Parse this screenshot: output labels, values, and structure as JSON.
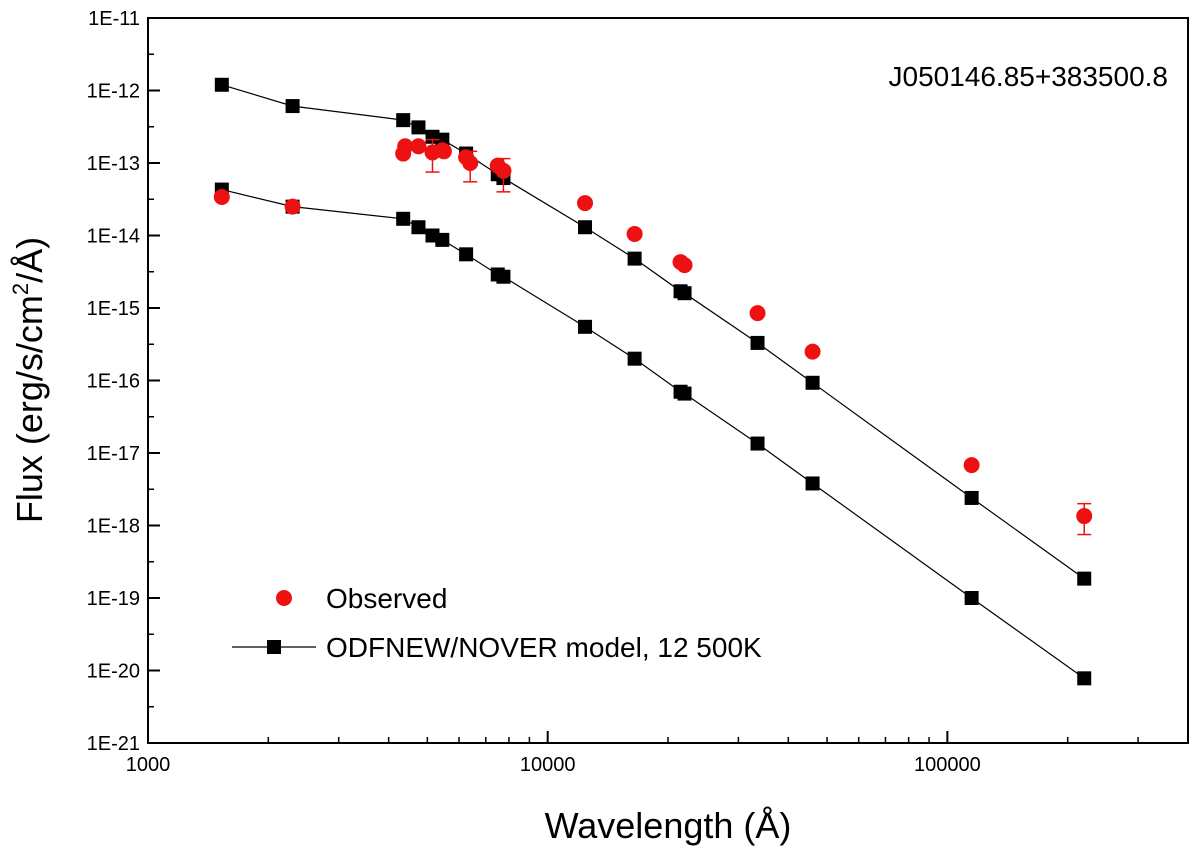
{
  "chart_data": {
    "type": "scatter",
    "xscale": "log",
    "yscale": "log",
    "xlabel": "Wavelength (Å)",
    "ylabel_parts": [
      "Flux (erg/s/cm",
      "2",
      "/Å)"
    ],
    "annotation": "J050146.85+383500.8",
    "xlim": [
      1000,
      400000
    ],
    "ylim": [
      1e-21,
      1e-11
    ],
    "x_ticks": [
      {
        "value": 1000,
        "label": "1000"
      },
      {
        "value": 10000,
        "label": "10000"
      },
      {
        "value": 100000,
        "label": "100000"
      }
    ],
    "y_ticks": [
      {
        "value": 1e-11,
        "label": "1E-11"
      },
      {
        "value": 1e-12,
        "label": "1E-12"
      },
      {
        "value": 1e-13,
        "label": "1E-13"
      },
      {
        "value": 1e-14,
        "label": "1E-14"
      },
      {
        "value": 1e-15,
        "label": "1E-15"
      },
      {
        "value": 1e-16,
        "label": "1E-16"
      },
      {
        "value": 1e-17,
        "label": "1E-17"
      },
      {
        "value": 1e-18,
        "label": "1E-18"
      },
      {
        "value": 1e-19,
        "label": "1E-19"
      },
      {
        "value": 1e-20,
        "label": "1E-20"
      },
      {
        "value": 1e-21,
        "label": "1E-21"
      }
    ],
    "legend": {
      "position": "bottom-left",
      "entries": [
        {
          "label": "Observed",
          "marker": "circle",
          "color": "#ee1111"
        },
        {
          "label": "ODFNEW/NOVER model, 12 500K",
          "marker": "square-line",
          "color": "#000000"
        }
      ]
    },
    "series": [
      {
        "name": "Observed",
        "kind": "points-with-errors",
        "color": "#ee1111",
        "points": [
          {
            "x": 1530,
            "y": 3.4e-14
          },
          {
            "x": 2300,
            "y": 2.5e-14
          },
          {
            "x": 4350,
            "y": 1.35e-13
          },
          {
            "x": 4400,
            "y": 1.7e-13
          },
          {
            "x": 4750,
            "y": 1.7e-13
          },
          {
            "x": 5150,
            "y": 1.4e-13,
            "ylo": 7.5e-14,
            "yhi": 2.1e-13
          },
          {
            "x": 5450,
            "y": 1.5e-13
          },
          {
            "x": 5500,
            "y": 1.45e-13
          },
          {
            "x": 6250,
            "y": 1.2e-13
          },
          {
            "x": 6400,
            "y": 1e-13,
            "ylo": 5.5e-14,
            "yhi": 1.45e-13
          },
          {
            "x": 7500,
            "y": 9.2e-14
          },
          {
            "x": 7750,
            "y": 7.8e-14,
            "ylo": 4e-14,
            "yhi": 1.15e-13
          },
          {
            "x": 12400,
            "y": 2.8e-14
          },
          {
            "x": 16500,
            "y": 1.05e-14
          },
          {
            "x": 21500,
            "y": 4.3e-15
          },
          {
            "x": 22000,
            "y": 3.9e-15
          },
          {
            "x": 33500,
            "y": 8.5e-16
          },
          {
            "x": 46000,
            "y": 2.5e-16
          },
          {
            "x": 115000,
            "y": 6.8e-18
          },
          {
            "x": 220000,
            "y": 1.35e-18,
            "ylo": 7.5e-19,
            "yhi": 2e-18
          }
        ]
      },
      {
        "name": "ODFNEW/NOVER model, 12 500K (upper)",
        "kind": "line-squares",
        "color": "#000000",
        "points": [
          {
            "x": 1530,
            "y": 1.2e-12
          },
          {
            "x": 2300,
            "y": 6.1e-13
          },
          {
            "x": 4350,
            "y": 3.9e-13
          },
          {
            "x": 4750,
            "y": 3.1e-13
          },
          {
            "x": 5150,
            "y": 2.3e-13
          },
          {
            "x": 5450,
            "y": 2.1e-13
          },
          {
            "x": 6250,
            "y": 1.35e-13
          },
          {
            "x": 7500,
            "y": 7e-14
          },
          {
            "x": 7750,
            "y": 6.2e-14
          },
          {
            "x": 12400,
            "y": 1.3e-14
          },
          {
            "x": 16500,
            "y": 4.8e-15
          },
          {
            "x": 21500,
            "y": 1.7e-15
          },
          {
            "x": 22000,
            "y": 1.6e-15
          },
          {
            "x": 33500,
            "y": 3.3e-16
          },
          {
            "x": 46000,
            "y": 9.3e-17
          },
          {
            "x": 115000,
            "y": 2.4e-18
          },
          {
            "x": 220000,
            "y": 1.85e-19
          }
        ]
      },
      {
        "name": "ODFNEW/NOVER model, 12 500K (lower)",
        "kind": "line-squares",
        "color": "#000000",
        "points": [
          {
            "x": 1530,
            "y": 4.3e-14
          },
          {
            "x": 2300,
            "y": 2.5e-14
          },
          {
            "x": 4350,
            "y": 1.7e-14
          },
          {
            "x": 4750,
            "y": 1.3e-14
          },
          {
            "x": 5150,
            "y": 1e-14
          },
          {
            "x": 5450,
            "y": 8.7e-15
          },
          {
            "x": 6250,
            "y": 5.5e-15
          },
          {
            "x": 7500,
            "y": 2.9e-15
          },
          {
            "x": 7750,
            "y": 2.7e-15
          },
          {
            "x": 12400,
            "y": 5.5e-16
          },
          {
            "x": 16500,
            "y": 2e-16
          },
          {
            "x": 21500,
            "y": 7e-17
          },
          {
            "x": 22000,
            "y": 6.6e-17
          },
          {
            "x": 33500,
            "y": 1.35e-17
          },
          {
            "x": 46000,
            "y": 3.8e-18
          },
          {
            "x": 115000,
            "y": 1e-19
          },
          {
            "x": 220000,
            "y": 7.8e-21
          }
        ]
      }
    ]
  }
}
